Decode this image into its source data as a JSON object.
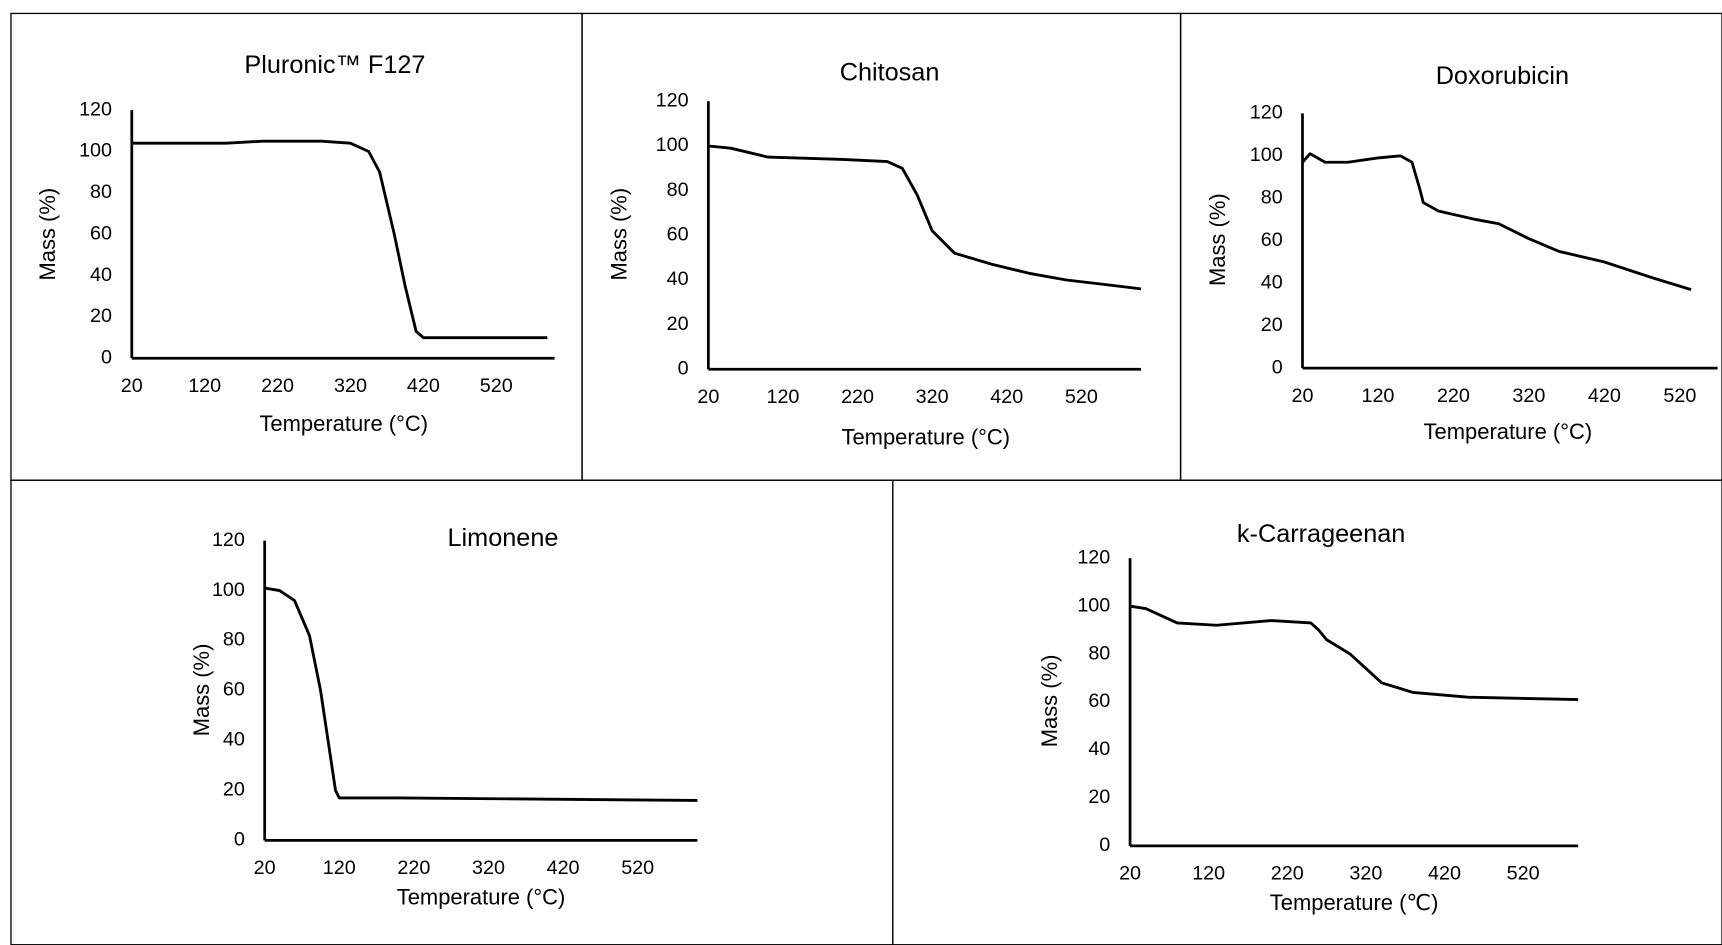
{
  "chart_data": [
    {
      "type": "line",
      "title": "Pluronic™ F127",
      "x_label": "Temperature (°C)",
      "y_label": "Mass  (%)",
      "color": "#000000",
      "x": [
        20,
        100,
        150,
        200,
        280,
        320,
        345,
        360,
        380,
        395,
        410,
        420,
        500,
        590
      ],
      "values": [
        104,
        104,
        104,
        105,
        105,
        104,
        100,
        90,
        60,
        35,
        13,
        10,
        10,
        10
      ],
      "xlim": [
        20,
        600
      ],
      "ylim": [
        0,
        120
      ],
      "xticks": [
        20,
        120,
        220,
        320,
        420,
        520
      ],
      "yticks": [
        0,
        20,
        40,
        60,
        80,
        100,
        120
      ]
    },
    {
      "type": "line",
      "title": "Chitosan",
      "x_label": "Temperature (°C)",
      "y_label": "Mass  (%)",
      "color": "#000000",
      "x": [
        20,
        50,
        100,
        200,
        260,
        280,
        300,
        320,
        350,
        400,
        450,
        500,
        550,
        600
      ],
      "values": [
        100,
        99,
        95,
        94,
        93,
        90,
        78,
        62,
        52,
        47,
        43,
        40,
        38,
        36
      ],
      "xlim": [
        20,
        600
      ],
      "ylim": [
        0,
        120
      ],
      "xticks": [
        20,
        120,
        220,
        320,
        420,
        520
      ],
      "yticks": [
        0,
        20,
        40,
        60,
        80,
        100,
        120
      ]
    },
    {
      "type": "line",
      "title": "Doxorubicin",
      "x_label": "Temperature (°C)",
      "y_label": "Mass  (%)",
      "color": "#000000",
      "x": [
        20,
        30,
        50,
        80,
        120,
        150,
        165,
        175,
        180,
        200,
        250,
        280,
        320,
        360,
        420,
        480,
        535
      ],
      "values": [
        97,
        101,
        97,
        97,
        99,
        100,
        97,
        85,
        78,
        74,
        70,
        68,
        61,
        55,
        50,
        43,
        37
      ],
      "xlim": [
        20,
        570
      ],
      "ylim": [
        0,
        120
      ],
      "xticks": [
        20,
        120,
        220,
        320,
        420,
        520
      ],
      "yticks": [
        0,
        20,
        40,
        60,
        80,
        100,
        120
      ]
    },
    {
      "type": "line",
      "title": "Limonene",
      "x_label": "Temperature (°C)",
      "y_label": "Mass  (%)",
      "color": "#000000",
      "x": [
        20,
        40,
        60,
        80,
        95,
        105,
        115,
        120,
        200,
        400,
        600
      ],
      "values": [
        101,
        100,
        96,
        82,
        60,
        40,
        20,
        17,
        17,
        16.5,
        16
      ],
      "xlim": [
        20,
        600
      ],
      "ylim": [
        0,
        120
      ],
      "xticks": [
        20,
        120,
        220,
        320,
        420,
        520
      ],
      "yticks": [
        0,
        20,
        40,
        60,
        80,
        100,
        120
      ]
    },
    {
      "type": "line",
      "title": "k-Carrageenan",
      "x_label": "Temperature (℃)",
      "y_label": "Mass  (%)",
      "color": "#000000",
      "x": [
        20,
        40,
        80,
        130,
        200,
        250,
        260,
        270,
        300,
        340,
        380,
        450,
        590
      ],
      "values": [
        100,
        99,
        93,
        92,
        94,
        93,
        90,
        86,
        80,
        68,
        64,
        62,
        61
      ],
      "xlim": [
        20,
        590
      ],
      "ylim": [
        0,
        120
      ],
      "xticks": [
        20,
        120,
        220,
        320,
        420,
        520
      ],
      "yticks": [
        0,
        20,
        40,
        60,
        80,
        100,
        120
      ]
    }
  ]
}
